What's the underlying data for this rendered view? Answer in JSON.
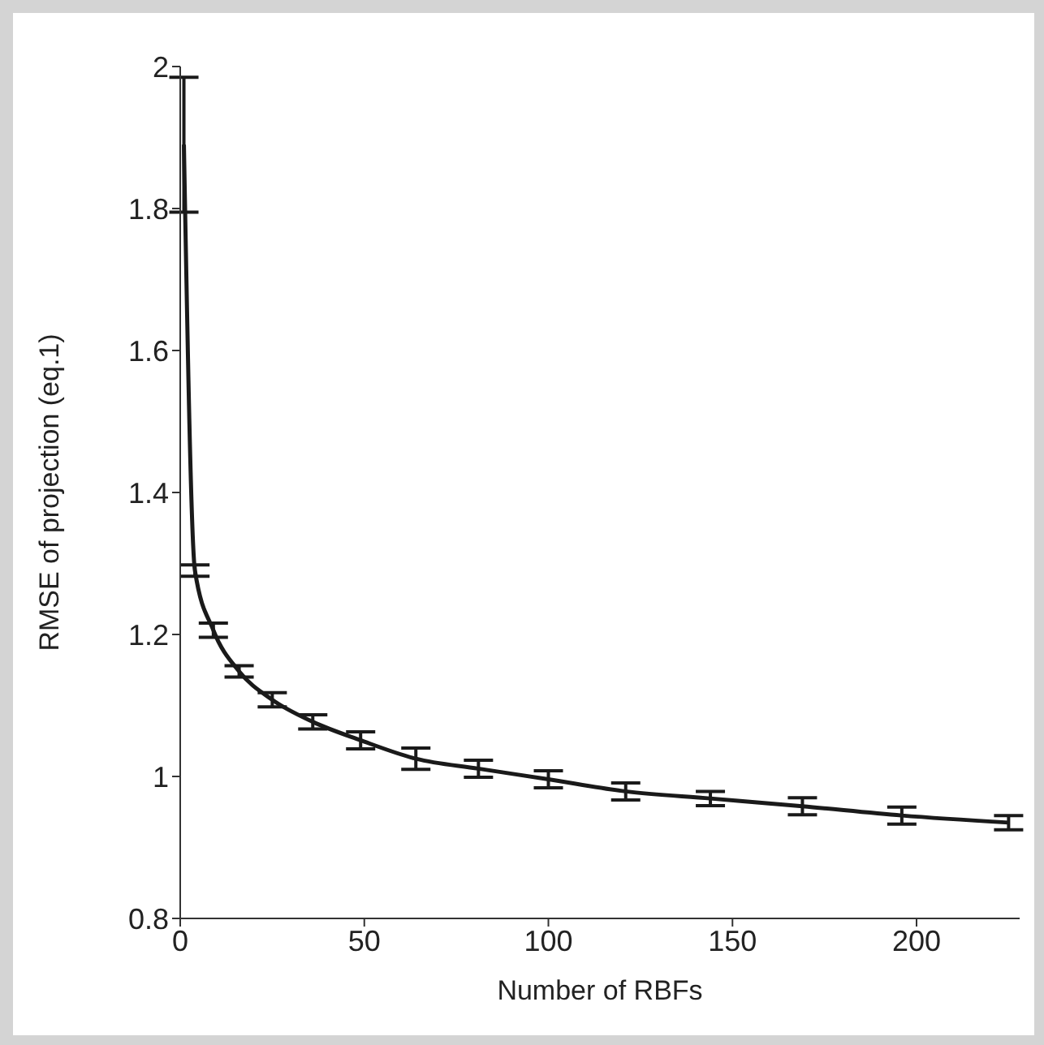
{
  "chart_data": {
    "type": "line",
    "xlabel": "Number of RBFs",
    "ylabel": "RMSE of projection (eq.1)",
    "x": [
      1,
      4,
      9,
      16,
      25,
      36,
      49,
      64,
      81,
      100,
      121,
      144,
      169,
      196,
      225
    ],
    "series": [
      {
        "color": "#1a1a1a",
        "values": [
          1.89,
          1.29,
          1.206,
          1.148,
          1.108,
          1.077,
          1.051,
          1.025,
          1.011,
          0.996,
          0.979,
          0.969,
          0.958,
          0.945,
          0.935
        ],
        "errors": [
          0.095,
          0.008,
          0.01,
          0.008,
          0.01,
          0.01,
          0.012,
          0.015,
          0.012,
          0.012,
          0.012,
          0.01,
          0.012,
          0.012,
          0.01
        ]
      }
    ],
    "xlim": [
      0,
      228
    ],
    "xticks": [
      0,
      50,
      100,
      150,
      200
    ],
    "ylim": [
      0.8,
      2
    ],
    "yticks": [
      0.8,
      1,
      1.2,
      1.4,
      1.6,
      1.8,
      2
    ],
    "grid": false,
    "legend": false,
    "marker": "none",
    "line_style": "solid"
  }
}
